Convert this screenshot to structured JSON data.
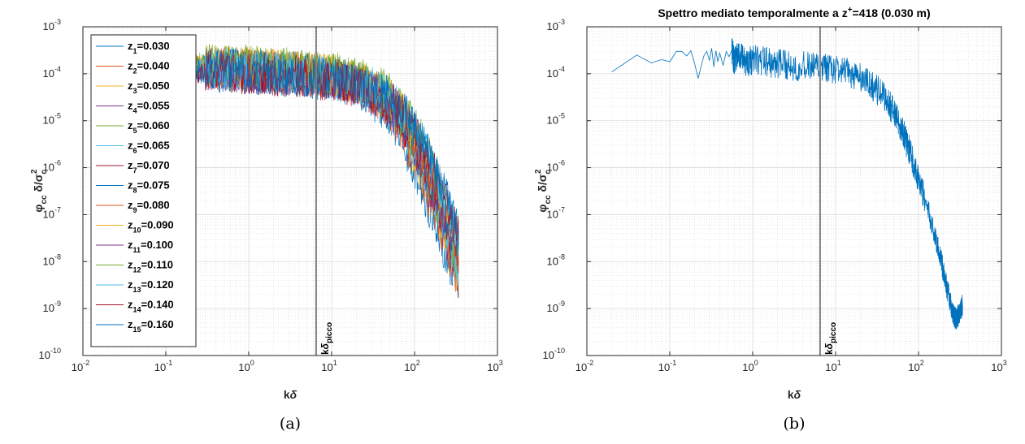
{
  "chart_data": [
    {
      "id": "a",
      "type": "line",
      "title": "",
      "caption": "(a)",
      "xlabel": "kδ",
      "ylabel": "φcc δ/σc²",
      "xscale": "log",
      "yscale": "log",
      "xlim": [
        0.01,
        1000
      ],
      "ylim": [
        1e-10,
        0.001
      ],
      "x_ticks": [
        {
          "base": "10",
          "exp": "-2"
        },
        {
          "base": "10",
          "exp": "-1"
        },
        {
          "base": "10",
          "exp": "0"
        },
        {
          "base": "10",
          "exp": "1"
        },
        {
          "base": "10",
          "exp": "2"
        },
        {
          "base": "10",
          "exp": "3"
        }
      ],
      "y_ticks": [
        {
          "base": "10",
          "exp": "-10"
        },
        {
          "base": "10",
          "exp": "-9"
        },
        {
          "base": "10",
          "exp": "-8"
        },
        {
          "base": "10",
          "exp": "-7"
        },
        {
          "base": "10",
          "exp": "-6"
        },
        {
          "base": "10",
          "exp": "-5"
        },
        {
          "base": "10",
          "exp": "-4"
        },
        {
          "base": "10",
          "exp": "-3"
        }
      ],
      "grid": true,
      "legend_position": "top-left",
      "vline": {
        "x": 6.5,
        "label": "kδpicco",
        "color": "#808080"
      },
      "series": [
        {
          "name": "z1=0.030",
          "sub": "1",
          "value": "=0.030",
          "color": "#0072BD",
          "amplitude": 0.00012
        },
        {
          "name": "z2=0.040",
          "sub": "2",
          "value": "=0.040",
          "color": "#D95319",
          "amplitude": 0.00015
        },
        {
          "name": "z3=0.050",
          "sub": "3",
          "value": "=0.050",
          "color": "#EDB120",
          "amplitude": 0.00016
        },
        {
          "name": "z4=0.055",
          "sub": "4",
          "value": "=0.055",
          "color": "#7E2F8E",
          "amplitude": 0.00014
        },
        {
          "name": "z5=0.060",
          "sub": "5",
          "value": "=0.060",
          "color": "#77AC30",
          "amplitude": 0.00017
        },
        {
          "name": "z6=0.065",
          "sub": "6",
          "value": "=0.065",
          "color": "#4DBEEE",
          "amplitude": 0.00013
        },
        {
          "name": "z7=0.070",
          "sub": "7",
          "value": "=0.070",
          "color": "#A2142F",
          "amplitude": 0.00012
        },
        {
          "name": "z8=0.075",
          "sub": "8",
          "value": "=0.075",
          "color": "#0072BD",
          "amplitude": 0.00015
        },
        {
          "name": "z9=0.080",
          "sub": "9",
          "value": "=0.080",
          "color": "#D95319",
          "amplitude": 0.00014
        },
        {
          "name": "z10=0.090",
          "sub": "10",
          "value": "=0.090",
          "color": "#EDB120",
          "amplitude": 0.00016
        },
        {
          "name": "z11=0.100",
          "sub": "11",
          "value": "=0.100",
          "color": "#7E2F8E",
          "amplitude": 0.00013
        },
        {
          "name": "z12=0.110",
          "sub": "12",
          "value": "=0.110",
          "color": "#77AC30",
          "amplitude": 0.00018
        },
        {
          "name": "z13=0.120",
          "sub": "13",
          "value": "=0.120",
          "color": "#4DBEEE",
          "amplitude": 0.00014
        },
        {
          "name": "z14=0.140",
          "sub": "14",
          "value": "=0.140",
          "color": "#A2142F",
          "amplitude": 0.00012
        },
        {
          "name": "z15=0.160",
          "sub": "15",
          "value": "=0.160",
          "color": "#0072BD",
          "amplitude": 0.00013
        }
      ]
    },
    {
      "id": "b",
      "type": "line",
      "title": "Spettro mediato temporalmente a z+=418 (0.030 m)",
      "title_parts": {
        "pre": "Spettro mediato temporalmente a z",
        "sup": "+",
        "post": "=418 (0.030 m)"
      },
      "caption": "(b)",
      "xlabel": "kδ",
      "ylabel": "φcc δ/σc²",
      "xscale": "log",
      "yscale": "log",
      "xlim": [
        0.01,
        1000
      ],
      "ylim": [
        1e-10,
        0.001
      ],
      "x_ticks": [
        {
          "base": "10",
          "exp": "-2"
        },
        {
          "base": "10",
          "exp": "-1"
        },
        {
          "base": "10",
          "exp": "0"
        },
        {
          "base": "10",
          "exp": "1"
        },
        {
          "base": "10",
          "exp": "2"
        },
        {
          "base": "10",
          "exp": "3"
        }
      ],
      "y_ticks": [
        {
          "base": "10",
          "exp": "-10"
        },
        {
          "base": "10",
          "exp": "-9"
        },
        {
          "base": "10",
          "exp": "-8"
        },
        {
          "base": "10",
          "exp": "-7"
        },
        {
          "base": "10",
          "exp": "-6"
        },
        {
          "base": "10",
          "exp": "-5"
        },
        {
          "base": "10",
          "exp": "-4"
        },
        {
          "base": "10",
          "exp": "-3"
        }
      ],
      "grid": true,
      "vline": {
        "x": 6.5,
        "label": "kδpicco",
        "color": "#808080"
      },
      "series": [
        {
          "name": "",
          "color": "#0072BD",
          "x": [
            0.02,
            0.04,
            0.06,
            0.08,
            0.1,
            0.12,
            0.14,
            0.16,
            0.18,
            0.2,
            0.22,
            0.24,
            0.26,
            0.28,
            0.3,
            0.32,
            0.34,
            0.36,
            0.38,
            0.4,
            0.44,
            0.48,
            0.52,
            0.56,
            0.6,
            0.7,
            0.8,
            1.0,
            1.5,
            2,
            3,
            5,
            7,
            10,
            15,
            20,
            30,
            40,
            50,
            60,
            70,
            80,
            100,
            120,
            150,
            180,
            200,
            230,
            260,
            280,
            300,
            320,
            340
          ],
          "y": [
            0.00011,
            0.00025,
            0.00017,
            0.0002,
            0.00018,
            0.0003,
            0.0003,
            0.00024,
            0.00031,
            0.00016,
            8e-05,
            0.00015,
            0.00025,
            0.0003,
            0.00019,
            0.00035,
            0.00014,
            0.00031,
            0.00018,
            0.00028,
            0.00015,
            0.0003,
            0.00023,
            0.00032,
            0.00018,
            0.00025,
            0.00017,
            0.0002,
            0.00018,
            0.00016,
            0.00015,
            0.00014,
            0.00013,
            0.00012,
            0.0001,
            8e-05,
            5e-05,
            3e-05,
            1.6e-05,
            8e-06,
            4e-06,
            2e-06,
            6e-07,
            2e-07,
            5e-08,
            1.5e-08,
            6e-09,
            2e-09,
            8e-10,
            6e-10,
            7e-10,
            9e-10,
            1.2e-09
          ]
        }
      ]
    }
  ]
}
